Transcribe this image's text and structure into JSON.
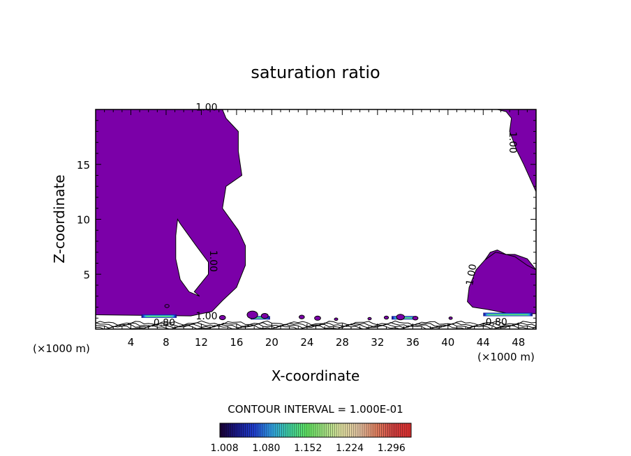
{
  "chart_data": {
    "type": "heatmap",
    "title": "saturation ratio",
    "xlabel": "X-coordinate",
    "ylabel": "Z-coordinate",
    "x_unit": "(×1000 m)",
    "xlim": [
      0,
      50
    ],
    "ylim": [
      0,
      20
    ],
    "x_ticks": [
      "4",
      "8",
      "12",
      "16",
      "20",
      "24",
      "28",
      "32",
      "36",
      "40",
      "44",
      "48"
    ],
    "x_tick_values": [
      4,
      8,
      12,
      16,
      20,
      24,
      28,
      32,
      36,
      40,
      44,
      48
    ],
    "y_ticks": [
      "5",
      "10",
      "15"
    ],
    "y_tick_values": [
      5,
      10,
      15
    ],
    "contour_interval_text": "CONTOUR INTERVAL = 1.000E-01",
    "contour_labels": [
      {
        "text": "1.00",
        "x": 12.6,
        "z": 19.9,
        "rot": 0
      },
      {
        "text": "1.00",
        "x": 47.0,
        "z": 17.0,
        "rot": 90
      },
      {
        "text": "1.00",
        "x": 13.0,
        "z": 6.2,
        "rot": 90
      },
      {
        "text": "1.00",
        "x": 43.0,
        "z": 4.9,
        "rot": -80
      },
      {
        "text": "1.00",
        "x": 12.6,
        "z": 0.9,
        "rot": 0
      },
      {
        "text": "0.80",
        "x": 7.8,
        "z": 0.3,
        "rot": 0
      },
      {
        "text": "0.80",
        "x": 45.5,
        "z": 0.35,
        "rot": 0
      }
    ],
    "regions": {
      "fill_color": "#7b00a8",
      "supersaturated_left": [
        [
          0,
          20
        ],
        [
          14.4,
          20
        ],
        [
          14.8,
          19.2
        ],
        [
          16.2,
          18
        ],
        [
          16.2,
          16.2
        ],
        [
          16.6,
          14
        ],
        [
          14.8,
          13
        ],
        [
          14.4,
          11
        ],
        [
          16.2,
          9
        ],
        [
          17,
          7.6
        ],
        [
          17,
          5.8
        ],
        [
          16,
          3.8
        ],
        [
          14.4,
          2.6
        ],
        [
          13.2,
          1.6
        ],
        [
          10.8,
          1.2
        ],
        [
          0,
          1.3
        ]
      ],
      "unsaturated_hole": [
        [
          9.3,
          10
        ],
        [
          9.6,
          9.6
        ],
        [
          11.4,
          7.6
        ],
        [
          12.8,
          6.1
        ],
        [
          12.8,
          5
        ],
        [
          11.8,
          4
        ],
        [
          11.2,
          3.4
        ],
        [
          11.8,
          3
        ],
        [
          10.6,
          3.4
        ],
        [
          9.6,
          4.5
        ],
        [
          9.1,
          6.4
        ],
        [
          9.1,
          8.5
        ]
      ],
      "supersaturated_right": [
        [
          45.6,
          20
        ],
        [
          50,
          20
        ],
        [
          50,
          5.4
        ],
        [
          49,
          6.4
        ],
        [
          47.6,
          6.8
        ],
        [
          46.6,
          6.8
        ],
        [
          45.6,
          7.2
        ],
        [
          44.8,
          7
        ],
        [
          44.2,
          6.3
        ],
        [
          43.6,
          4.8
        ],
        [
          43.2,
          3.3
        ],
        [
          45.4,
          1.8
        ],
        [
          49,
          1.7
        ],
        [
          50,
          1.6
        ],
        [
          50,
          12.5
        ],
        [
          48.6,
          15
        ],
        [
          47.8,
          16.3
        ],
        [
          47,
          18
        ],
        [
          47.2,
          19.2
        ],
        [
          46.6,
          19.8
        ]
      ],
      "right_lower_mass": [
        [
          42.2,
          2.5
        ],
        [
          42.4,
          3.8
        ],
        [
          43.2,
          5.4
        ],
        [
          44.2,
          6.3
        ],
        [
          45.4,
          7
        ],
        [
          46.6,
          6.8
        ],
        [
          47.6,
          6.6
        ],
        [
          49,
          5.8
        ],
        [
          50,
          5.4
        ],
        [
          50,
          1.4
        ],
        [
          47,
          1.4
        ],
        [
          44.4,
          1.8
        ],
        [
          42.8,
          2
        ]
      ]
    },
    "colorbar": {
      "ticks": [
        "1.008",
        "1.080",
        "1.152",
        "1.224",
        "1.296"
      ],
      "tick_values": [
        1.008,
        1.08,
        1.152,
        1.224,
        1.296
      ],
      "range": [
        1.0,
        1.33
      ],
      "colors": [
        "#1a0033",
        "#1a1a8c",
        "#2040d0",
        "#30a0e0",
        "#40d0a0",
        "#60e060",
        "#a0e080",
        "#e0e0a0",
        "#e0c0a0",
        "#e08060",
        "#d04040",
        "#e03030"
      ]
    }
  }
}
